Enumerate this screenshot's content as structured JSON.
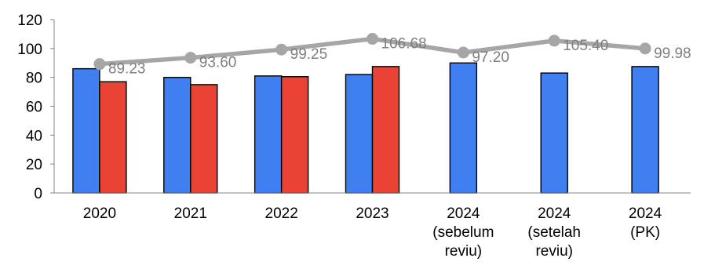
{
  "chart_data": {
    "type": "bar",
    "categories": [
      [
        "2020"
      ],
      [
        "2021"
      ],
      [
        "2022"
      ],
      [
        "2023"
      ],
      [
        "2024",
        "(sebelum",
        "reviu)"
      ],
      [
        "2024",
        "(setelah",
        "reviu)"
      ],
      [
        "2024",
        "(PK)"
      ]
    ],
    "series": [
      {
        "type": "bar",
        "color": "#3f7fef",
        "values": [
          86,
          80,
          81,
          82,
          90,
          83,
          87.5
        ]
      },
      {
        "type": "bar",
        "color": "#ea4335",
        "values": [
          77,
          75,
          80.5,
          87.5,
          null,
          null,
          null
        ]
      },
      {
        "type": "line",
        "color": "#a6a6a6",
        "values": [
          89.23,
          93.6,
          99.25,
          106.68,
          97.2,
          105.4,
          99.98
        ],
        "labels": [
          "89.23",
          "93.60",
          "99.25",
          "106.68",
          "97.20",
          "105.40",
          "99.98"
        ]
      }
    ],
    "yticks": [
      "0",
      "20",
      "40",
      "60",
      "80",
      "100",
      "120"
    ],
    "ylim": [
      0,
      120
    ],
    "grid": false,
    "title": "",
    "xlabel": "",
    "ylabel": ""
  }
}
